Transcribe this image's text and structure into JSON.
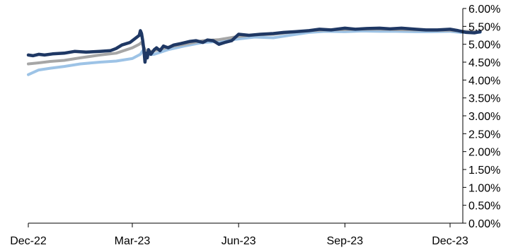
{
  "chart_data": {
    "type": "line",
    "x_axis": {
      "ticks": [
        "Dec-22",
        "Mar-23",
        "Jun-23",
        "Sep-23",
        "Dec-23"
      ],
      "tick_dates": [
        "2022-12-01",
        "2023-03-01",
        "2023-06-01",
        "2023-09-01",
        "2023-12-01"
      ],
      "range": [
        "2022-12-01",
        "2023-12-31"
      ]
    },
    "y_axis": {
      "position": "right",
      "range": [
        0,
        6
      ],
      "ticks": [
        "0.00%",
        "0.50%",
        "1.00%",
        "1.50%",
        "2.00%",
        "2.50%",
        "3.00%",
        "3.50%",
        "4.00%",
        "4.50%",
        "5.00%",
        "5.50%",
        "6.00%"
      ]
    },
    "grid": false,
    "legend": "none",
    "series": [
      {
        "color": "#9DC3E6",
        "points": [
          [
            "2022-12-01",
            4.15
          ],
          [
            "2022-12-10",
            4.28
          ],
          [
            "2022-12-20",
            4.33
          ],
          [
            "2023-01-01",
            4.38
          ],
          [
            "2023-01-15",
            4.45
          ],
          [
            "2023-02-01",
            4.5
          ],
          [
            "2023-02-15",
            4.53
          ],
          [
            "2023-03-01",
            4.6
          ],
          [
            "2023-03-08",
            4.72
          ],
          [
            "2023-03-10",
            4.82
          ],
          [
            "2023-03-13",
            4.7
          ],
          [
            "2023-03-20",
            4.72
          ],
          [
            "2023-04-01",
            4.85
          ],
          [
            "2023-04-15",
            4.95
          ],
          [
            "2023-05-01",
            5.05
          ],
          [
            "2023-05-15",
            5.08
          ],
          [
            "2023-06-01",
            5.15
          ],
          [
            "2023-06-15",
            5.2
          ],
          [
            "2023-07-01",
            5.18
          ],
          [
            "2023-07-15",
            5.25
          ],
          [
            "2023-08-01",
            5.33
          ],
          [
            "2023-08-15",
            5.36
          ],
          [
            "2023-09-01",
            5.35
          ],
          [
            "2023-09-15",
            5.37
          ],
          [
            "2023-10-01",
            5.36
          ],
          [
            "2023-10-15",
            5.36
          ],
          [
            "2023-11-01",
            5.35
          ],
          [
            "2023-11-15",
            5.35
          ],
          [
            "2023-12-01",
            5.36
          ],
          [
            "2023-12-10",
            5.33
          ],
          [
            "2023-12-20",
            5.33
          ],
          [
            "2023-12-27",
            5.33
          ]
        ]
      },
      {
        "color": "#A6A6A6",
        "points": [
          [
            "2022-12-01",
            4.45
          ],
          [
            "2022-12-10",
            4.48
          ],
          [
            "2022-12-20",
            4.52
          ],
          [
            "2023-01-01",
            4.55
          ],
          [
            "2023-01-15",
            4.62
          ],
          [
            "2023-02-01",
            4.7
          ],
          [
            "2023-02-15",
            4.75
          ],
          [
            "2023-03-01",
            4.9
          ],
          [
            "2023-03-07",
            5.0
          ],
          [
            "2023-03-09",
            5.05
          ],
          [
            "2023-03-13",
            4.78
          ],
          [
            "2023-03-20",
            4.82
          ],
          [
            "2023-04-01",
            4.92
          ],
          [
            "2023-04-15",
            5.0
          ],
          [
            "2023-05-01",
            5.1
          ],
          [
            "2023-05-15",
            5.13
          ],
          [
            "2023-06-01",
            5.22
          ],
          [
            "2023-06-15",
            5.26
          ],
          [
            "2023-07-01",
            5.28
          ],
          [
            "2023-07-15",
            5.33
          ],
          [
            "2023-08-01",
            5.38
          ],
          [
            "2023-08-15",
            5.4
          ],
          [
            "2023-09-01",
            5.41
          ],
          [
            "2023-09-15",
            5.42
          ],
          [
            "2023-10-01",
            5.42
          ],
          [
            "2023-10-15",
            5.41
          ],
          [
            "2023-11-01",
            5.4
          ],
          [
            "2023-11-15",
            5.39
          ],
          [
            "2023-12-01",
            5.39
          ],
          [
            "2023-12-10",
            5.37
          ],
          [
            "2023-12-20",
            5.35
          ],
          [
            "2023-12-27",
            5.36
          ]
        ]
      },
      {
        "color": "#1F3864",
        "points": [
          [
            "2022-12-01",
            4.7
          ],
          [
            "2022-12-05",
            4.68
          ],
          [
            "2022-12-10",
            4.72
          ],
          [
            "2022-12-15",
            4.7
          ],
          [
            "2022-12-22",
            4.73
          ],
          [
            "2023-01-01",
            4.75
          ],
          [
            "2023-01-10",
            4.8
          ],
          [
            "2023-01-20",
            4.78
          ],
          [
            "2023-02-01",
            4.8
          ],
          [
            "2023-02-10",
            4.82
          ],
          [
            "2023-02-15",
            4.88
          ],
          [
            "2023-02-20",
            4.98
          ],
          [
            "2023-02-27",
            5.05
          ],
          [
            "2023-03-03",
            5.15
          ],
          [
            "2023-03-07",
            5.25
          ],
          [
            "2023-03-08",
            5.38
          ],
          [
            "2023-03-09",
            5.3
          ],
          [
            "2023-03-10",
            5.1
          ],
          [
            "2023-03-11",
            4.85
          ],
          [
            "2023-03-12",
            4.5
          ],
          [
            "2023-03-13",
            4.75
          ],
          [
            "2023-03-14",
            4.62
          ],
          [
            "2023-03-15",
            4.85
          ],
          [
            "2023-03-17",
            4.72
          ],
          [
            "2023-03-20",
            4.85
          ],
          [
            "2023-03-22",
            4.9
          ],
          [
            "2023-03-25",
            4.82
          ],
          [
            "2023-03-28",
            4.95
          ],
          [
            "2023-04-01",
            4.9
          ],
          [
            "2023-04-06",
            4.98
          ],
          [
            "2023-04-12",
            5.02
          ],
          [
            "2023-04-20",
            5.08
          ],
          [
            "2023-04-25",
            5.1
          ],
          [
            "2023-05-01",
            5.05
          ],
          [
            "2023-05-05",
            5.12
          ],
          [
            "2023-05-10",
            5.1
          ],
          [
            "2023-05-15",
            5.0
          ],
          [
            "2023-05-20",
            5.05
          ],
          [
            "2023-05-26",
            5.1
          ],
          [
            "2023-06-01",
            5.28
          ],
          [
            "2023-06-10",
            5.25
          ],
          [
            "2023-06-20",
            5.28
          ],
          [
            "2023-07-01",
            5.3
          ],
          [
            "2023-07-10",
            5.33
          ],
          [
            "2023-07-20",
            5.35
          ],
          [
            "2023-08-01",
            5.38
          ],
          [
            "2023-08-10",
            5.42
          ],
          [
            "2023-08-20",
            5.4
          ],
          [
            "2023-09-01",
            5.45
          ],
          [
            "2023-09-10",
            5.42
          ],
          [
            "2023-09-20",
            5.44
          ],
          [
            "2023-10-01",
            5.45
          ],
          [
            "2023-10-10",
            5.43
          ],
          [
            "2023-10-20",
            5.45
          ],
          [
            "2023-11-01",
            5.42
          ],
          [
            "2023-11-10",
            5.4
          ],
          [
            "2023-11-20",
            5.4
          ],
          [
            "2023-12-01",
            5.42
          ],
          [
            "2023-12-08",
            5.38
          ],
          [
            "2023-12-15",
            5.33
          ],
          [
            "2023-12-22",
            5.32
          ],
          [
            "2023-12-27",
            5.35
          ]
        ]
      }
    ]
  }
}
